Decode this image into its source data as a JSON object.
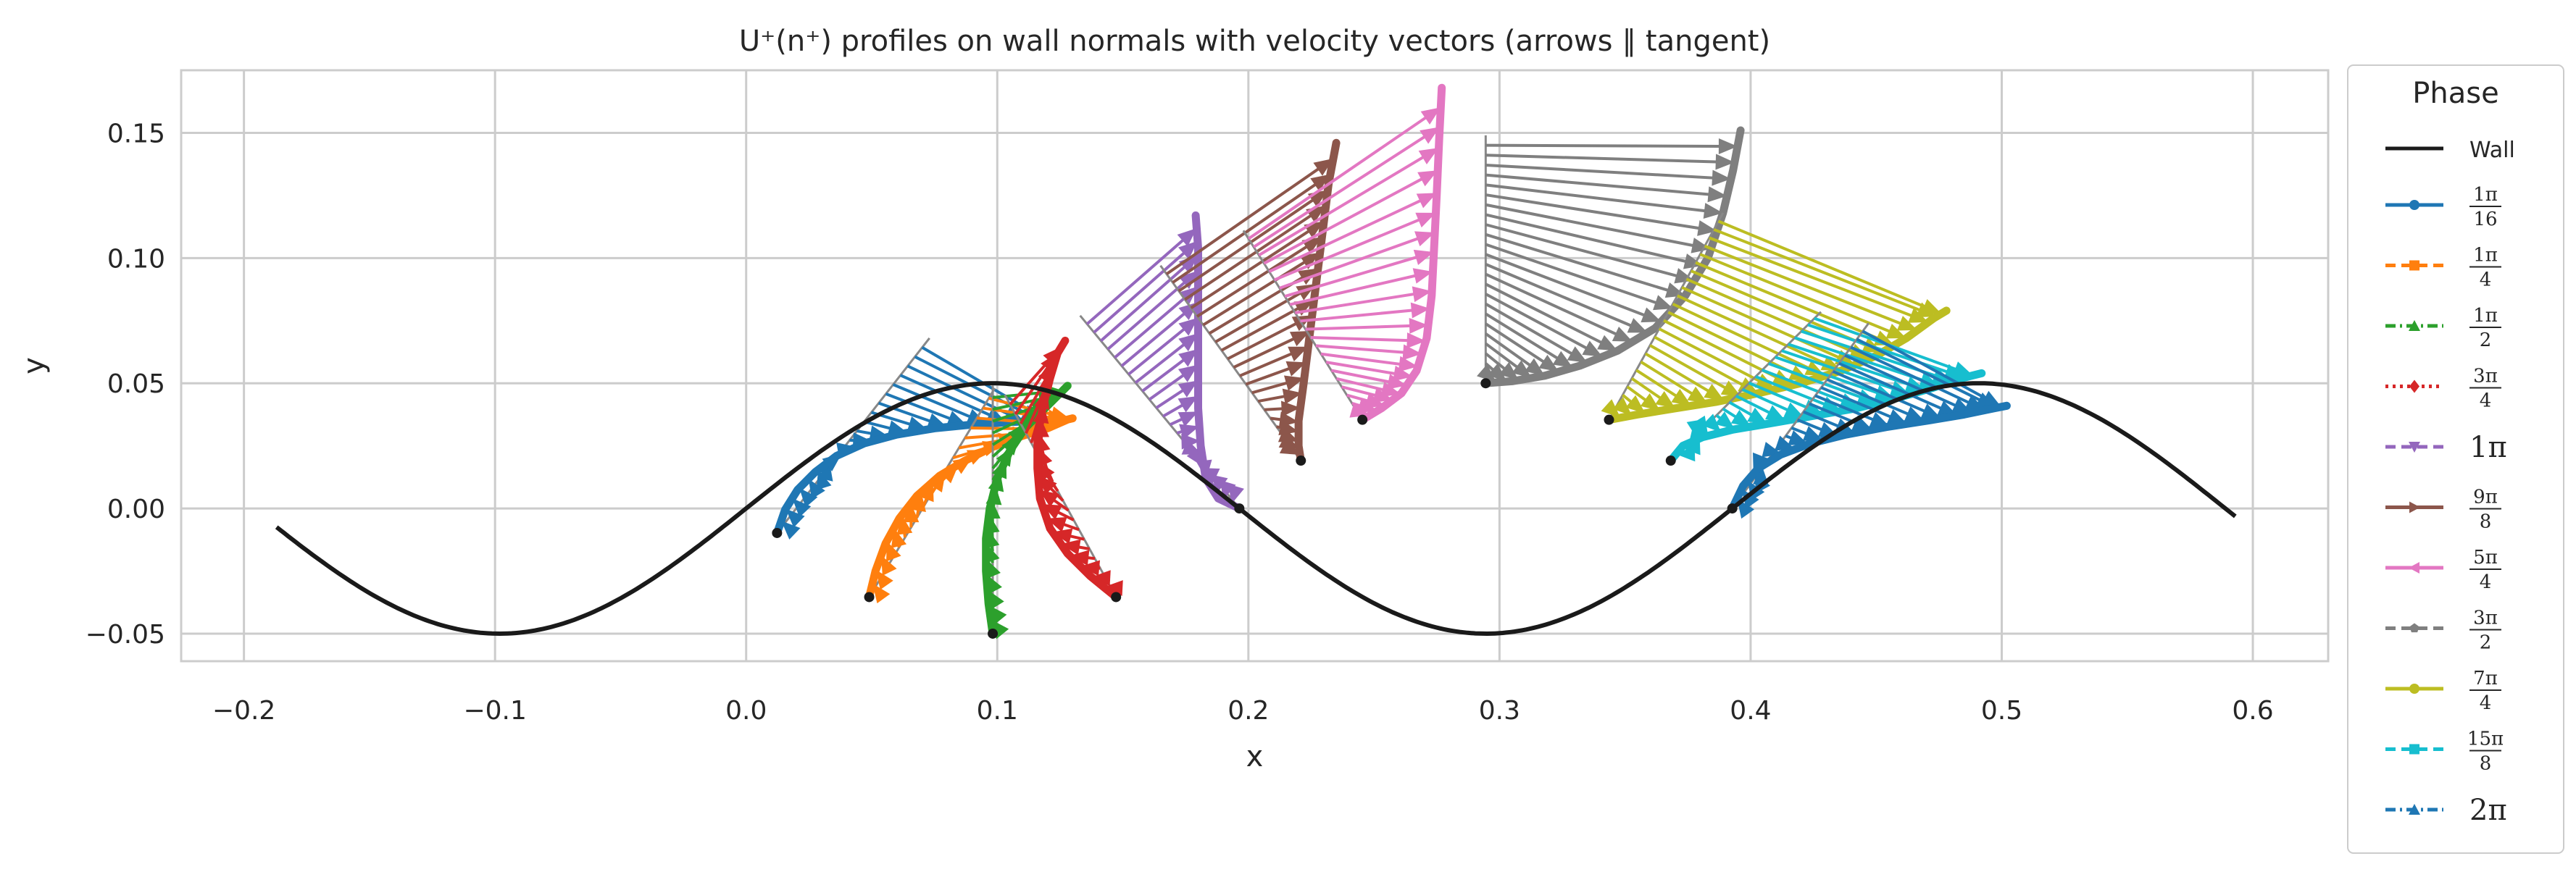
{
  "chart_data": {
    "type": "line",
    "title": "U⁺(n⁺) profiles on wall normals with velocity vectors (arrows ∥ tangent)",
    "xlabel": "x",
    "ylabel": "y",
    "xlim": [
      -0.225,
      0.63
    ],
    "ylim": [
      -0.061,
      0.175
    ],
    "x_ticks": [
      -0.2,
      -0.1,
      0.0,
      0.1,
      0.2,
      0.3,
      0.4,
      0.5,
      0.6
    ],
    "x_tick_labels": [
      "−0.2",
      "−0.1",
      "0.0",
      "0.1",
      "0.2",
      "0.3",
      "0.4",
      "0.5",
      "0.6"
    ],
    "y_ticks": [
      -0.05,
      0.0,
      0.05,
      0.1,
      0.15
    ],
    "y_tick_labels": [
      "−0.05",
      "0.00",
      "0.05",
      "0.10",
      "0.15"
    ],
    "grid": true,
    "legend": {
      "title": "Phase",
      "placement": "outside-right",
      "entries": [
        {
          "label": "Wall",
          "kind": "text",
          "color": "#1a1a1a",
          "dash": "solid",
          "marker": "none"
        },
        {
          "label": "1π/16",
          "num": "1π",
          "den": "16",
          "kind": "frac",
          "color": "#1f77b4",
          "dash": "solid",
          "marker": "circle"
        },
        {
          "label": "1π/4",
          "num": "1π",
          "den": "4",
          "kind": "frac",
          "color": "#ff7f0e",
          "dash": "dashed",
          "marker": "square"
        },
        {
          "label": "1π/2",
          "num": "1π",
          "den": "2",
          "kind": "frac",
          "color": "#2ca02c",
          "dash": "dashdot",
          "marker": "triangle-up"
        },
        {
          "label": "3π/4",
          "num": "3π",
          "den": "4",
          "kind": "frac",
          "color": "#d62728",
          "dash": "dotted",
          "marker": "diamond"
        },
        {
          "label": "1π",
          "kind": "text",
          "color": "#9467bd",
          "dash": "dashed",
          "marker": "triangle-down"
        },
        {
          "label": "9π/8",
          "num": "9π",
          "den": "8",
          "kind": "frac",
          "color": "#8c564b",
          "dash": "solid",
          "marker": "triangle-right"
        },
        {
          "label": "5π/4",
          "num": "5π",
          "den": "4",
          "kind": "frac",
          "color": "#e377c2",
          "dash": "solid",
          "marker": "triangle-left"
        },
        {
          "label": "3π/2",
          "num": "3π",
          "den": "2",
          "kind": "frac",
          "color": "#7f7f7f",
          "dash": "dashed",
          "marker": "pentagon"
        },
        {
          "label": "7π/4",
          "num": "7π",
          "den": "4",
          "kind": "frac",
          "color": "#bcbd22",
          "dash": "solid",
          "marker": "circle"
        },
        {
          "label": "15π/8",
          "num": "15π",
          "den": "8",
          "kind": "frac",
          "color": "#17becf",
          "dash": "dashed",
          "marker": "square"
        },
        {
          "label": "2π",
          "kind": "text",
          "color": "#1f77b4",
          "dash": "dashdot",
          "marker": "triangle-up"
        }
      ]
    },
    "wall": {
      "name": "Wall",
      "color": "#1a1a1a",
      "amplitude": 0.05,
      "wavelength": 0.3927,
      "phase_x": 0.0,
      "x_range": [
        -0.187,
        0.593
      ]
    },
    "series": [
      {
        "name": "1π/16",
        "color": "#1f77b4",
        "x0": 0.0123,
        "y0": -0.0098,
        "tx": 0.8314,
        "ty": 0.5556,
        "profile": [
          [
            0.0123,
            -0.0098
          ],
          [
            0.0155,
            -0.0005
          ],
          [
            0.0205,
            0.0075
          ],
          [
            0.0275,
            0.0145
          ],
          [
            0.036,
            0.021
          ],
          [
            0.047,
            0.026
          ],
          [
            0.06,
            0.0295
          ],
          [
            0.075,
            0.032
          ],
          [
            0.09,
            0.0335
          ],
          [
            0.105,
            0.0345
          ],
          [
            0.118,
            0.035
          ],
          [
            0.122,
            0.0352
          ]
        ],
        "normal_end": [
          0.073,
          0.068
        ],
        "n_arrows": 20
      },
      {
        "name": "1π/4",
        "color": "#ff7f0e",
        "x0": 0.049,
        "y0": -0.0354,
        "tx": 0.3369,
        "ty": 0.9415,
        "profile": [
          [
            0.049,
            -0.0354
          ],
          [
            0.0515,
            -0.025
          ],
          [
            0.0555,
            -0.014
          ],
          [
            0.061,
            -0.004
          ],
          [
            0.068,
            0.005
          ],
          [
            0.077,
            0.013
          ],
          [
            0.087,
            0.019
          ],
          [
            0.098,
            0.0245
          ],
          [
            0.11,
            0.029
          ],
          [
            0.12,
            0.032
          ],
          [
            0.128,
            0.0355
          ],
          [
            0.13,
            0.036
          ]
        ],
        "normal_end": [
          0.099,
          0.048
        ],
        "n_arrows": 20
      },
      {
        "name": "1π/2",
        "color": "#2ca02c",
        "x0": 0.0982,
        "y0": -0.05,
        "tx": 1.0,
        "ty": 0.0,
        "profile": [
          [
            0.0982,
            -0.05
          ],
          [
            0.0965,
            -0.038
          ],
          [
            0.0955,
            -0.025
          ],
          [
            0.0955,
            -0.012
          ],
          [
            0.097,
            0.0
          ],
          [
            0.1,
            0.012
          ],
          [
            0.105,
            0.023
          ],
          [
            0.111,
            0.032
          ],
          [
            0.118,
            0.039
          ],
          [
            0.124,
            0.045
          ],
          [
            0.128,
            0.049
          ]
        ],
        "normal_end": [
          0.0982,
          0.049
        ],
        "n_arrows": 20
      },
      {
        "name": "3π/4",
        "color": "#d62728",
        "x0": 0.1473,
        "y0": -0.0354,
        "tx": 0.6004,
        "ty": -0.7997,
        "profile": [
          [
            0.1473,
            -0.0354
          ],
          [
            0.137,
            -0.027
          ],
          [
            0.128,
            -0.018
          ],
          [
            0.121,
            -0.008
          ],
          [
            0.117,
            0.004
          ],
          [
            0.116,
            0.016
          ],
          [
            0.116,
            0.028
          ],
          [
            0.118,
            0.04
          ],
          [
            0.121,
            0.052
          ],
          [
            0.124,
            0.062
          ],
          [
            0.127,
            0.067
          ]
        ],
        "normal_end": [
          0.103,
          0.0454
        ],
        "n_arrows": 20
      },
      {
        "name": "1π",
        "color": "#9467bd",
        "x0": 0.1964,
        "y0": 0.0,
        "tx": 0.622,
        "ty": -0.783,
        "profile": [
          [
            0.1964,
            0.0
          ],
          [
            0.188,
            0.004
          ],
          [
            0.183,
            0.012
          ],
          [
            0.181,
            0.025
          ],
          [
            0.18,
            0.04
          ],
          [
            0.18,
            0.056
          ],
          [
            0.18,
            0.072
          ],
          [
            0.18,
            0.088
          ],
          [
            0.18,
            0.104
          ],
          [
            0.179,
            0.117
          ]
        ],
        "normal_end": [
          0.133,
          0.077
        ],
        "n_arrows": 22
      },
      {
        "name": "9π/8",
        "color": "#8c564b",
        "x0": 0.2209,
        "y0": 0.0191,
        "tx": 0.709,
        "ty": -0.7052,
        "profile": [
          [
            0.2209,
            0.0191
          ],
          [
            0.22,
            0.025
          ],
          [
            0.22,
            0.035
          ],
          [
            0.222,
            0.05
          ],
          [
            0.224,
            0.066
          ],
          [
            0.226,
            0.082
          ],
          [
            0.228,
            0.098
          ],
          [
            0.23,
            0.114
          ],
          [
            0.232,
            0.13
          ],
          [
            0.235,
            0.146
          ]
        ],
        "normal_end": [
          0.165,
          0.097
        ],
        "n_arrows": 22
      },
      {
        "name": "5π/4",
        "color": "#e377c2",
        "x0": 0.2454,
        "y0": 0.0354,
        "tx": 0.8467,
        "ty": -0.5321,
        "profile": [
          [
            0.2454,
            0.0354
          ],
          [
            0.253,
            0.04
          ],
          [
            0.261,
            0.046
          ],
          [
            0.267,
            0.055
          ],
          [
            0.271,
            0.068
          ],
          [
            0.273,
            0.085
          ],
          [
            0.274,
            0.105
          ],
          [
            0.275,
            0.125
          ],
          [
            0.276,
            0.148
          ],
          [
            0.277,
            0.168
          ]
        ],
        "normal_end": [
          0.198,
          0.111
        ],
        "n_arrows": 22
      },
      {
        "name": "3π/2",
        "color": "#7f7f7f",
        "x0": 0.2945,
        "y0": 0.05,
        "tx": 1.0,
        "ty": 0.0,
        "profile": [
          [
            0.2945,
            0.05
          ],
          [
            0.305,
            0.0508
          ],
          [
            0.318,
            0.053
          ],
          [
            0.332,
            0.057
          ],
          [
            0.347,
            0.063
          ],
          [
            0.362,
            0.072
          ],
          [
            0.374,
            0.085
          ],
          [
            0.383,
            0.1
          ],
          [
            0.389,
            0.118
          ],
          [
            0.393,
            0.135
          ],
          [
            0.396,
            0.151
          ]
        ],
        "normal_end": [
          0.2945,
          0.149
        ],
        "n_arrows": 24
      },
      {
        "name": "7π/4",
        "color": "#bcbd22",
        "x0": 0.3436,
        "y0": 0.0354,
        "tx": 0.8467,
        "ty": 0.5321,
        "profile": [
          [
            0.3436,
            0.0354
          ],
          [
            0.355,
            0.0375
          ],
          [
            0.37,
            0.04
          ],
          [
            0.386,
            0.0425
          ],
          [
            0.403,
            0.046
          ],
          [
            0.42,
            0.05
          ],
          [
            0.436,
            0.055
          ],
          [
            0.45,
            0.061
          ],
          [
            0.462,
            0.068
          ],
          [
            0.473,
            0.076
          ],
          [
            0.478,
            0.079
          ]
        ],
        "normal_end": [
          0.389,
          0.118
        ],
        "n_arrows": 24
      },
      {
        "name": "15π/8",
        "color": "#17becf",
        "x0": 0.3682,
        "y0": 0.0191,
        "tx": 0.709,
        "ty": 0.7052,
        "profile": [
          [
            0.3682,
            0.0191
          ],
          [
            0.373,
            0.025
          ],
          [
            0.381,
            0.0285
          ],
          [
            0.393,
            0.0315
          ],
          [
            0.408,
            0.034
          ],
          [
            0.425,
            0.037
          ],
          [
            0.442,
            0.04
          ],
          [
            0.458,
            0.044
          ],
          [
            0.472,
            0.048
          ],
          [
            0.484,
            0.052
          ],
          [
            0.492,
            0.054
          ]
        ],
        "normal_end": [
          0.428,
          0.0785
        ],
        "n_arrows": 22
      },
      {
        "name": "2π",
        "color": "#1f77b4",
        "x0": 0.3927,
        "y0": 0.0,
        "tx": 0.622,
        "ty": 0.783,
        "profile": [
          [
            0.3927,
            0.0
          ],
          [
            0.397,
            0.009
          ],
          [
            0.403,
            0.016
          ],
          [
            0.412,
            0.0215
          ],
          [
            0.424,
            0.026
          ],
          [
            0.438,
            0.0295
          ],
          [
            0.454,
            0.0325
          ],
          [
            0.47,
            0.035
          ],
          [
            0.485,
            0.0375
          ],
          [
            0.497,
            0.04
          ],
          [
            0.502,
            0.041
          ]
        ],
        "normal_end": [
          0.447,
          0.074
        ],
        "n_arrows": 22
      }
    ]
  }
}
